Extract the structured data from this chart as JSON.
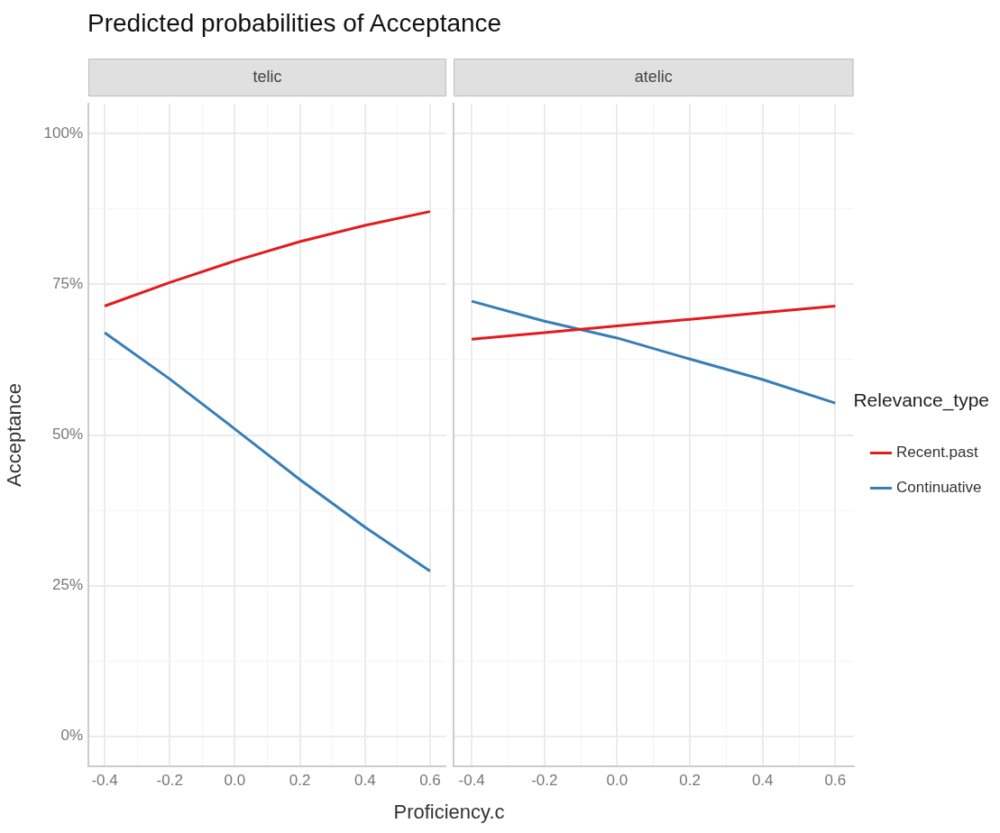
{
  "chart_data": [
    {
      "type": "line",
      "title": "Predicted probabilities of Acceptance",
      "subtitle": "telic",
      "xlabel": "Proficiency.c",
      "ylabel": "Acceptance",
      "x": [
        -0.4,
        -0.2,
        0,
        0.2,
        0.4,
        0.6
      ],
      "series": [
        {
          "color": "#e41a1c",
          "values": [
            71.4,
            75.3,
            78.9,
            82.1,
            84.8,
            87.1
          ]
        },
        {
          "color": "#377eb8",
          "values": [
            67.0,
            59.3,
            51.0,
            42.6,
            34.7,
            27.4
          ]
        }
      ],
      "xlim": [
        -0.45,
        0.65
      ],
      "xticks": [
        -0.4,
        {
          "value": -0.3,
          "label": null
        },
        -0.2,
        {
          "value": -0.1,
          "label": null
        },
        {
          "value": 0,
          "label": "0.0"
        },
        {
          "value": 0.1,
          "label": null
        },
        0.2,
        {
          "value": 0.3,
          "label": null
        },
        0.4,
        {
          "value": 0.5,
          "label": null
        },
        0.6
      ],
      "ylim": [
        -5,
        105
      ],
      "yticks": [
        {
          "value": 0,
          "label": "0%"
        },
        {
          "value": 12.5,
          "label": null
        },
        {
          "value": 25,
          "label": "25%"
        },
        {
          "value": 37.5,
          "label": null
        },
        {
          "value": 50,
          "label": "50%"
        },
        {
          "value": 62.5,
          "label": null
        },
        {
          "value": 75,
          "label": "75%"
        },
        {
          "value": 87.5,
          "label": null
        },
        {
          "value": 100,
          "label": "100%"
        }
      ],
      "grid": true
    },
    {
      "type": "line",
      "subtitle": "atelic",
      "legend_title": "Relevance_type",
      "legend": "right",
      "tick_labels": "x",
      "x": [
        -0.4,
        -0.2,
        0,
        0.2,
        0.4,
        0.6
      ],
      "series": [
        {
          "name": "Recent.past",
          "color": "#e41a1c",
          "values": [
            65.9,
            67.0,
            68.1,
            69.2,
            70.3,
            71.4
          ]
        },
        {
          "name": "Continuative",
          "color": "#377eb8",
          "values": [
            72.2,
            68.9,
            66.1,
            62.6,
            59.2,
            55.3
          ]
        }
      ],
      "xlim": [
        -0.45,
        0.65
      ],
      "xticks": [
        -0.4,
        {
          "value": -0.3,
          "label": null
        },
        -0.2,
        {
          "value": -0.1,
          "label": null
        },
        {
          "value": 0,
          "label": "0.0"
        },
        {
          "value": 0.1,
          "label": null
        },
        0.2,
        {
          "value": 0.3,
          "label": null
        },
        0.4,
        {
          "value": 0.5,
          "label": null
        },
        0.6
      ],
      "ylim": [
        -5,
        105
      ],
      "yticks": [
        0,
        {
          "value": 12.5,
          "label": null
        },
        25,
        {
          "value": 37.5,
          "label": null
        },
        50,
        {
          "value": 62.5,
          "label": null
        },
        75,
        {
          "value": 87.5,
          "label": null
        },
        100
      ],
      "grid": true
    }
  ]
}
